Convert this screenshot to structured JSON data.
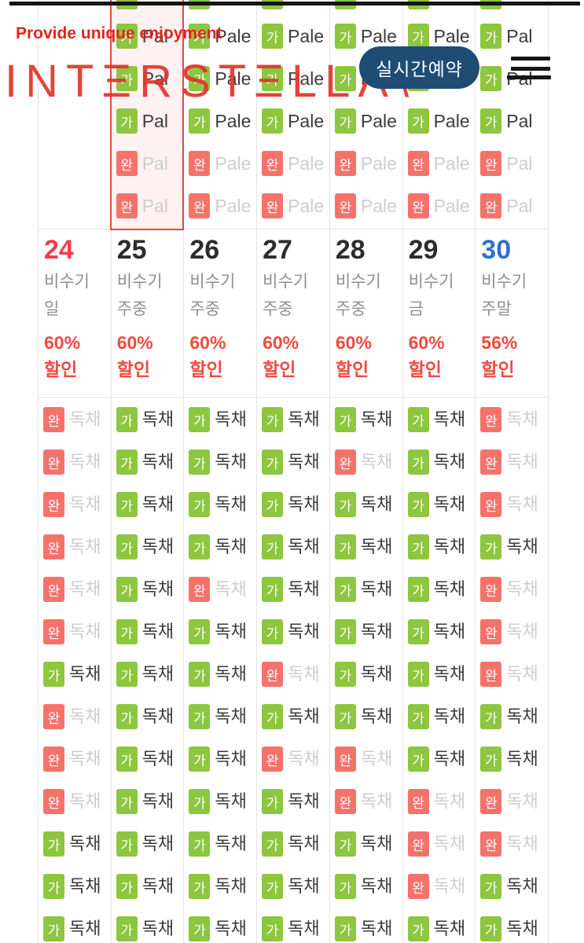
{
  "watermarks": {
    "slogan": "Provide unique enjoyment",
    "logo": "INTΞRSTΞLLΛ\\"
  },
  "header": {
    "booking_button_label": "실시간예약"
  },
  "badges": {
    "available": "가",
    "soldout": "완"
  },
  "colors": {
    "available_bg": "#8dc63f",
    "soldout_bg": "#f5726b",
    "date_red": "#f23d4c",
    "date_dark": "#2c2c2c",
    "date_blue": "#2c72c7",
    "discount_red": "#ef4a41",
    "button_navy": "#1e4c73",
    "highlight_border": "#db4b41",
    "highlight_bg": "#fdf2f1"
  },
  "top_section": {
    "room_labels": [
      "",
      "Pal",
      "Pale",
      "Pale",
      "Pale",
      "Pale",
      "Pal"
    ],
    "cutoff_tips": "GGGGGG",
    "rows": [
      "GGGGGG",
      "GGGGGG",
      "GGGGGG",
      "SSSSSS",
      "SSSSSS"
    ],
    "highlighted_column": 1
  },
  "week": {
    "room_label": "독채",
    "dates": [
      {
        "day": "24",
        "color": "red",
        "season": "비수기",
        "day_type": "일",
        "discount_pct": "60%",
        "discount_label": "할인"
      },
      {
        "day": "25",
        "color": "dark",
        "season": "비수기",
        "day_type": "주중",
        "discount_pct": "60%",
        "discount_label": "할인"
      },
      {
        "day": "26",
        "color": "dark",
        "season": "비수기",
        "day_type": "주중",
        "discount_pct": "60%",
        "discount_label": "할인"
      },
      {
        "day": "27",
        "color": "dark",
        "season": "비수기",
        "day_type": "주중",
        "discount_pct": "60%",
        "discount_label": "할인"
      },
      {
        "day": "28",
        "color": "dark",
        "season": "비수기",
        "day_type": "주중",
        "discount_pct": "60%",
        "discount_label": "할인"
      },
      {
        "day": "29",
        "color": "dark",
        "season": "비수기",
        "day_type": "금",
        "discount_pct": "60%",
        "discount_label": "할인"
      },
      {
        "day": "30",
        "color": "blue",
        "season": "비수기",
        "day_type": "주말",
        "discount_pct": "56%",
        "discount_label": "할인"
      }
    ],
    "rows": [
      "SGGGGGS",
      "SGGGSGS",
      "SGGGGGS",
      "SGGGGGG",
      "SGSGGGS",
      "SGGGGGS",
      "GGGSGGS",
      "SGGGGGG",
      "SGGSSGG",
      "SGGGSSS",
      "GGGGGSS",
      "GGGGGSG",
      "GGGGGGG"
    ]
  }
}
